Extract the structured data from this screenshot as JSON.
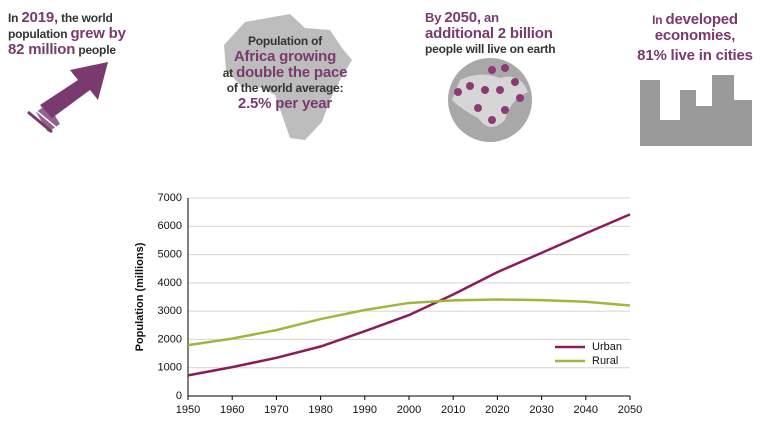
{
  "infographics": [
    {
      "lines": [
        [
          "In",
          "2019,",
          "the world"
        ],
        [
          "population",
          "grew by"
        ],
        [
          "82 million",
          "people"
        ]
      ]
    },
    {
      "lines": [
        [
          "Population of"
        ],
        [
          "Africa growing"
        ],
        [
          "at",
          "double the pace"
        ],
        [
          "of the world average:"
        ],
        [
          "2.5% per year"
        ]
      ]
    },
    {
      "lines": [
        [
          "By",
          "2050,",
          "an"
        ],
        [
          "additional 2 billion"
        ],
        [
          "people will live on earth"
        ]
      ]
    },
    {
      "lines": [
        [
          "In",
          "developed"
        ],
        [
          "economies,"
        ],
        [
          "81% live in cities"
        ]
      ]
    }
  ],
  "chart_data": {
    "type": "line",
    "ylabel": "Population (millions)",
    "x": [
      1950,
      1960,
      1970,
      1980,
      1990,
      2000,
      2010,
      2020,
      2030,
      2040,
      2050
    ],
    "series": [
      {
        "name": "Urban",
        "color": "#8c1b5c",
        "values": [
          730,
          1020,
          1350,
          1750,
          2290,
          2860,
          3590,
          4380,
          5060,
          5750,
          6420
        ]
      },
      {
        "name": "Rural",
        "color": "#9fb83a",
        "values": [
          1800,
          2030,
          2330,
          2720,
          3040,
          3290,
          3380,
          3410,
          3390,
          3330,
          3200
        ]
      }
    ],
    "xlim": [
      1950,
      2050
    ],
    "xticks": [
      1950,
      1960,
      1970,
      1980,
      1990,
      2000,
      2010,
      2020,
      2030,
      2040,
      2050
    ],
    "ylim": [
      0,
      7000
    ],
    "yticks": [
      0,
      1000,
      2000,
      3000,
      4000,
      5000,
      6000,
      7000
    ],
    "grid": true,
    "legend": "lower right"
  }
}
